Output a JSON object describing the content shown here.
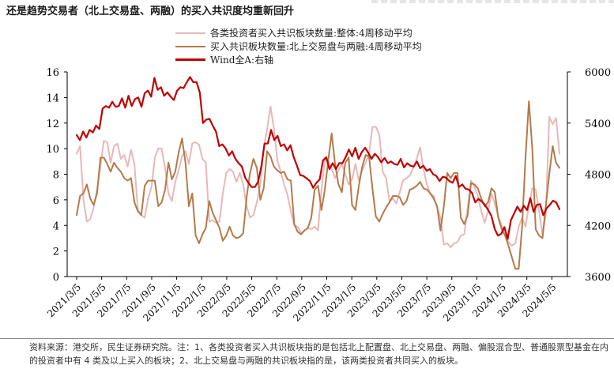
{
  "header": {
    "title": "还是趋势交易者（北上交易盘、两融）的买入共识度均重新回升"
  },
  "chart_data": {
    "type": "line",
    "left_axis": {
      "min": 0,
      "max": 16,
      "ticks": [
        "0",
        "2",
        "4",
        "6",
        "8",
        "10",
        "12",
        "14",
        "16"
      ]
    },
    "right_axis": {
      "min": 3600,
      "max": 6000,
      "ticks": [
        "3600",
        "4200",
        "4800",
        "5400",
        "6000"
      ]
    },
    "x_ticks": [
      "2021/3/5",
      "2021/5/5",
      "2021/7/5",
      "2021/9/5",
      "2021/11/5",
      "2022/1/5",
      "2022/3/5",
      "2022/5/5",
      "2022/7/5",
      "2022/9/5",
      "2022/11/5",
      "2023/1/5",
      "2023/3/5",
      "2023/5/5",
      "2023/7/5",
      "2023/9/5",
      "2023/11/5",
      "2024/1/5",
      "2024/3/5",
      "2024/5/5"
    ],
    "series": [
      {
        "name": "各类投资者买入共识板块数量:整体:4周移动平均",
        "axis": "left",
        "color": "#e8b7b9",
        "width": 2,
        "values": [
          9.6,
          10.2,
          6.0,
          4.3,
          4.5,
          5.4,
          6.8,
          8.6,
          10.6,
          10.5,
          8.9,
          10.2,
          10.4,
          9.2,
          9.5,
          8.6,
          9.9,
          8.8,
          5.2,
          4.8,
          4.6,
          6.1,
          7.0,
          9.3,
          10.0,
          10.0,
          8.5,
          6.5,
          5.9,
          7.4,
          8.3,
          9.4,
          9.8,
          8.8,
          10.4,
          10.5,
          10.3,
          9.2,
          8.9,
          4.3,
          4.4,
          4.2,
          4.3,
          6.5,
          8.1,
          8.4,
          8.2,
          7.4,
          8.1,
          7.2,
          5.5,
          4.6,
          4.8,
          5.8,
          7.2,
          10.1,
          11.5,
          13.3,
          11.6,
          9.1,
          8.2,
          7.2,
          6.4,
          5.1,
          4.0,
          3.9,
          3.4,
          3.6,
          3.8,
          3.7,
          3.9,
          3.6,
          6.8,
          9.1,
          9.1,
          8.4,
          7.7,
          8.3,
          8.8,
          8.0,
          7.2,
          7.6,
          8.8,
          7.5,
          8.3,
          8.9,
          9.6,
          11.7,
          11.7,
          11.1,
          8.2,
          7.7,
          5.9,
          6.1,
          5.7,
          6.6,
          7.5,
          7.7,
          7.9,
          8.5,
          9.2,
          10.1,
          8.4,
          7.2,
          6.5,
          6.3,
          5.4,
          4.6,
          2.5,
          2.6,
          2.3,
          2.6,
          2.7,
          3.2,
          3.3,
          5.4,
          7.5,
          7.0,
          6.3,
          5.1,
          4.2,
          5.1,
          6.5,
          5.7,
          4.7,
          4.0,
          3.2,
          2.7,
          2.4,
          2.6,
          3.9,
          4.6,
          3.9,
          5.5,
          6.9,
          6.8,
          5.1,
          3.3,
          4.9,
          12.5,
          11.9,
          12.4,
          9.6
        ]
      },
      {
        "name": "买入共识板块数量:北上交易盘与两融:4周移动平均",
        "axis": "left",
        "color": "#b47a49",
        "width": 2,
        "values": [
          4.8,
          6.3,
          6.5,
          7.2,
          6.1,
          5.6,
          6.5,
          9.3,
          9.3,
          8.8,
          8.2,
          8.9,
          8.5,
          8.2,
          7.7,
          7.5,
          7.7,
          5.8,
          5.1,
          4.8,
          7.1,
          7.5,
          7.5,
          7.5,
          5.5,
          5.8,
          6.8,
          8.9,
          7.6,
          8.2,
          9.7,
          10.8,
          8.9,
          5.5,
          6.5,
          3.2,
          2.6,
          3.3,
          3.8,
          5.9,
          5.0,
          4.4,
          3.8,
          2.8,
          3.2,
          3.9,
          3.2,
          3.0,
          3.1,
          3.4,
          6.2,
          8.1,
          9.2,
          8.5,
          6.0,
          6.9,
          9.8,
          9.4,
          8.6,
          8.3,
          8.1,
          8.2,
          7.6,
          7.5,
          4.1,
          3.5,
          3.3,
          3.6,
          3.8,
          4.6,
          6.8,
          7.1,
          5.2,
          6.8,
          9.1,
          11.2,
          8.8,
          7.2,
          6.6,
          8.9,
          9.3,
          5.6,
          5.2,
          7.1,
          8.6,
          9.5,
          9.4,
          6.9,
          4.7,
          4.3,
          4.9,
          5.4,
          5.8,
          6.3,
          6.3,
          6.2,
          5.6,
          5.9,
          6.8,
          6.9,
          7.1,
          7.4,
          6.9,
          6.8,
          6.5,
          6.1,
          5.5,
          3.6,
          5.5,
          8.1,
          7.7,
          8.1,
          8.1,
          4.6,
          4.1,
          4.8,
          7.3,
          7.2,
          6.9,
          6.1,
          5.5,
          5.8,
          6.9,
          6.6,
          4.6,
          3.7,
          3.2,
          2.4,
          1.5,
          0.6,
          0.6,
          3.9,
          9.3,
          13.7,
          10.0,
          3.7,
          3.2,
          3.0,
          5.6,
          8.0,
          10.2,
          8.9,
          8.5
        ]
      },
      {
        "name": "Wind全A:右轴",
        "axis": "right",
        "color": "#c00000",
        "width": 2.2,
        "values": [
          5260,
          5200,
          5300,
          5230,
          5320,
          5290,
          5370,
          5330,
          5570,
          5600,
          5580,
          5650,
          5590,
          5600,
          5690,
          5580,
          5720,
          5600,
          5680,
          5700,
          5590,
          5750,
          5780,
          5710,
          5930,
          5790,
          5820,
          5720,
          5760,
          5710,
          5670,
          5780,
          5820,
          5810,
          5880,
          5940,
          5880,
          5880,
          5760,
          5400,
          5440,
          5450,
          5370,
          5300,
          5130,
          5150,
          5100,
          5020,
          5070,
          4980,
          4930,
          4890,
          4760,
          4700,
          4650,
          4650,
          4710,
          4890,
          5160,
          5160,
          5320,
          5200,
          5250,
          5130,
          5150,
          5080,
          5140,
          5000,
          4900,
          4790,
          4780,
          4750,
          4720,
          4640,
          4700,
          4740,
          4960,
          5000,
          4860,
          4930,
          4860,
          4930,
          4930,
          5000,
          5090,
          5010,
          5110,
          4980,
          5060,
          5110,
          5050,
          4980,
          5040,
          5000,
          4940,
          4990,
          4930,
          4950,
          4920,
          4910,
          4980,
          4880,
          4930,
          4900,
          4890,
          4950,
          4870,
          4900,
          4840,
          4860,
          4800,
          4780,
          4720,
          4770,
          4760,
          4720,
          4700,
          4780,
          4650,
          4680,
          4630,
          4620,
          4580,
          4470,
          4510,
          4480,
          4440,
          4380,
          4310,
          4160,
          4080,
          4100,
          4180,
          4040,
          4260,
          4340,
          4420,
          4360,
          4430,
          4380,
          4520,
          4360,
          4440,
          4450,
          4320,
          4400,
          4440,
          4490,
          4470,
          4390
        ]
      }
    ],
    "legend": [
      "各类投资者买入共识板块数量:整体:4周移动平均",
      "买入共识板块数量:北上交易盘与两融:4周移动平均",
      "Wind全A:右轴"
    ]
  },
  "footer": {
    "note": "资料来源：港交所，民生证券研究院。注：1、各类投资者买入共识板块指的是包括北上配置盘、北上交易盘、两融、偏股混合型、普通股票型基金在内的投资者中有 4 类及以上买入的板块；2、北上交易盘与两融的共识板块指的是，该两类投资者共同买入的板块。"
  }
}
